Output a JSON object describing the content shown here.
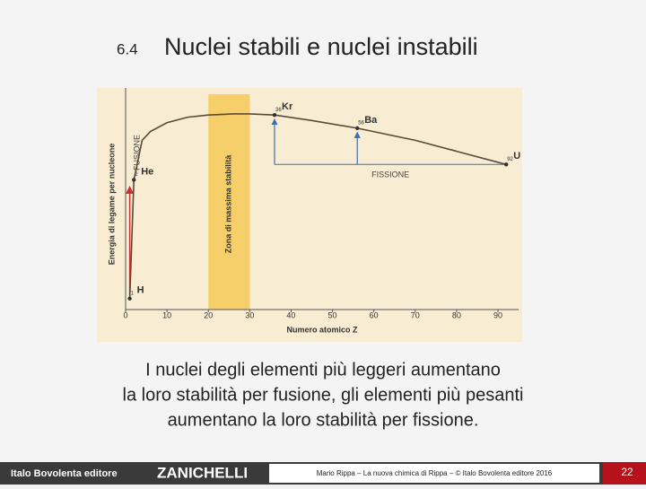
{
  "slide": {
    "section": "6.4",
    "title": "Nuclei stabili e nuclei instabili",
    "body": [
      "I nuclei degli elementi più leggeri aumentano",
      "la loro stabilità per fusione, gli elementi più pesanti",
      "aumentano la loro stabilità per fissione."
    ]
  },
  "footer": {
    "publisher": "Italo Bovolenta editore",
    "brand": "ZANICHELLI",
    "credit": "Mario Rippa – La nuova chimica di Rippa – © Italo Bovolenta editore 2016",
    "page": "22"
  },
  "chart_data": {
    "type": "line",
    "x_label": "Numero atomico Z",
    "y_label": "Energia di legame per nucleone",
    "annotations": {
      "fusion": "FUSIONE",
      "fission": "FISSIONE",
      "zone": "Zona di massima stabilità"
    },
    "x": [
      1,
      2,
      4,
      6,
      10,
      15,
      20,
      26,
      30,
      36,
      45,
      56,
      70,
      80,
      92
    ],
    "values": [
      0.5,
      5.9,
      7.7,
      8.1,
      8.5,
      8.75,
      8.85,
      8.9,
      8.9,
      8.85,
      8.6,
      8.25,
      7.7,
      7.2,
      6.6
    ],
    "color": "#5a4a3a",
    "points": {
      "labels": [
        "H",
        "He",
        "Kr",
        "Ba",
        "U"
      ],
      "x": [
        1,
        2,
        36,
        56,
        92
      ],
      "y": [
        0.5,
        5.9,
        8.85,
        8.25,
        6.6
      ]
    },
    "stability_zone": [
      20,
      30
    ],
    "zone_color": "#f6cf6a",
    "xlim": [
      0,
      95
    ],
    "ylim": [
      0,
      10
    ],
    "xticks": [
      0,
      10,
      20,
      30,
      40,
      50,
      60,
      70,
      80,
      90
    ]
  }
}
